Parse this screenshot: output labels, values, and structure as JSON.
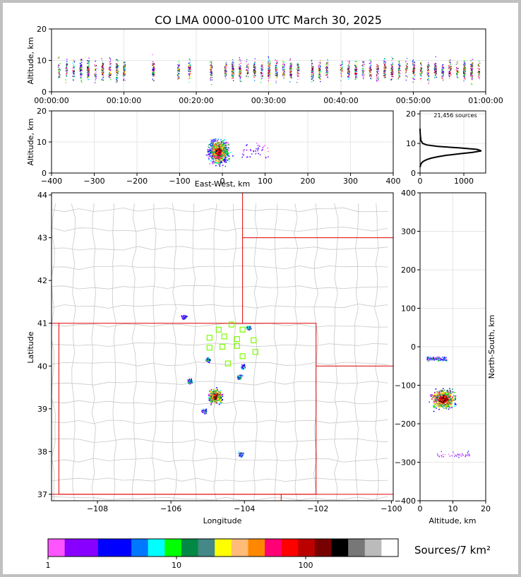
{
  "title": "CO LMA 0000-0100 UTC March 30, 2025",
  "colorbar_label": "Sources/7 km²",
  "colorbar_ticks": [
    "1",
    "10",
    "100"
  ],
  "colorbar_colors": [
    "#ff55ff",
    "#8800ff",
    "#8800ff",
    "#0000ff",
    "#0000ff",
    "#0077ff",
    "#00ffff",
    "#00ff00",
    "#008844",
    "#448888",
    "#ffff00",
    "#ffbb77",
    "#ff8800",
    "#ff0077",
    "#ff0000",
    "#bb0000",
    "#770000",
    "#000000",
    "#777777",
    "#bbbbbb",
    "#ffffff"
  ],
  "chart_data": [
    {
      "type": "scatter",
      "name": "time-height",
      "xlabel": "",
      "ylabel": "Altitude, km",
      "x_ticks": [
        "00:00:00",
        "00:10:00",
        "00:20:00",
        "00:30:00",
        "00:40:00",
        "00:50:00",
        "01:00:00"
      ],
      "xlim_minutes": [
        0,
        60
      ],
      "ylim": [
        0,
        20
      ],
      "y_ticks": [
        0,
        10,
        20
      ],
      "activity_columns_minutes": [
        1,
        2,
        3,
        4,
        5,
        6,
        7,
        8,
        9,
        10,
        14,
        17.5,
        19,
        22,
        24,
        25,
        26,
        27,
        28,
        29,
        30,
        31,
        32,
        33,
        34,
        36,
        37,
        38,
        40,
        41,
        42,
        43,
        44,
        45,
        46,
        47,
        48,
        49,
        50,
        51,
        52,
        53,
        54,
        55,
        56,
        57,
        58,
        59
      ]
    },
    {
      "type": "scatter",
      "name": "east-west vs altitude",
      "xlabel": "East-West, km",
      "ylabel": "Altitude, km",
      "xlim": [
        -400,
        400
      ],
      "x_ticks": [
        -400,
        -300,
        -200,
        -100,
        0,
        100,
        200,
        300,
        400
      ],
      "ylim": [
        0,
        20
      ],
      "y_ticks": [
        0,
        10,
        20
      ]
    },
    {
      "type": "line",
      "name": "source count by altitude",
      "annotation": "21,456 sources",
      "xlim": [
        0,
        1500
      ],
      "x_ticks": [
        0,
        1000
      ],
      "ylim": [
        0,
        21
      ],
      "y_ticks": [
        0,
        10,
        20
      ],
      "x": [
        0,
        20,
        40,
        80,
        150,
        250,
        400,
        600,
        900,
        1200,
        1400,
        1300,
        900,
        400,
        150,
        60,
        20,
        5,
        0
      ],
      "y": [
        2,
        3,
        3.5,
        4,
        4.5,
        5,
        5.5,
        6,
        6.5,
        7,
        7.5,
        8,
        8.5,
        9,
        9.5,
        10,
        11,
        13,
        15
      ]
    },
    {
      "type": "scatter",
      "name": "plan view",
      "xlabel": "Longitude",
      "ylabel": "Latitude",
      "xlim": [
        -109.25,
        -99.95
      ],
      "x_ticks": [
        -108,
        -106,
        -104,
        -102,
        -100
      ],
      "ylim": [
        36.85,
        44.05
      ],
      "y_ticks": [
        37,
        38,
        39,
        40,
        41,
        42,
        43,
        44
      ],
      "stations_lon_lat": [
        [
          -104.35,
          40.97
        ],
        [
          -104.7,
          40.85
        ],
        [
          -104.05,
          40.85
        ],
        [
          -104.95,
          40.66
        ],
        [
          -104.55,
          40.69
        ],
        [
          -104.2,
          40.63
        ],
        [
          -103.75,
          40.6
        ],
        [
          -104.6,
          40.45
        ],
        [
          -104.2,
          40.47
        ],
        [
          -104.95,
          40.43
        ],
        [
          -103.7,
          40.33
        ],
        [
          -104.05,
          40.23
        ],
        [
          -104.45,
          40.06
        ]
      ],
      "source_clusters_lon_lat": [
        [
          -104.8,
          39.3
        ],
        [
          -105.0,
          40.15
        ],
        [
          -105.5,
          39.65
        ],
        [
          -105.1,
          38.95
        ],
        [
          -105.65,
          41.15
        ],
        [
          -104.15,
          39.75
        ],
        [
          -104.1,
          37.95
        ],
        [
          -104.05,
          40.0
        ],
        [
          -103.9,
          40.9
        ]
      ]
    },
    {
      "type": "scatter",
      "name": "altitude vs north-south",
      "xlabel": "Altitude, km",
      "ylabel": "North-South, km",
      "xlim": [
        0,
        20
      ],
      "x_ticks": [
        0,
        10,
        20
      ],
      "ylim": [
        -400,
        400
      ],
      "y_ticks": [
        -400,
        -300,
        -200,
        -100,
        0,
        100,
        200,
        300,
        400
      ]
    }
  ]
}
